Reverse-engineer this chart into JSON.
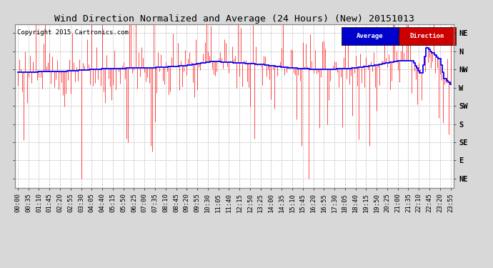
{
  "title": "Wind Direction Normalized and Average (24 Hours) (New) 20151013",
  "copyright": "Copyright 2015 Cartronics.com",
  "legend_average": "Average",
  "legend_direction": "Direction",
  "legend_average_bg": "#0000cc",
  "legend_direction_bg": "#cc0000",
  "ytick_labels": [
    "NE",
    "N",
    "NW",
    "W",
    "SW",
    "S",
    "SE",
    "E",
    "NE"
  ],
  "ytick_values": [
    9,
    8,
    7,
    6,
    5,
    4,
    3,
    2,
    1
  ],
  "xtick_labels": [
    "00:00",
    "00:35",
    "01:10",
    "01:45",
    "02:20",
    "02:55",
    "03:30",
    "04:05",
    "04:40",
    "05:15",
    "05:50",
    "06:25",
    "07:00",
    "07:35",
    "08:10",
    "08:45",
    "09:20",
    "09:55",
    "10:30",
    "11:05",
    "11:40",
    "12:15",
    "12:50",
    "13:25",
    "14:00",
    "14:35",
    "15:10",
    "15:45",
    "16:20",
    "16:55",
    "17:30",
    "18:05",
    "18:40",
    "19:15",
    "19:50",
    "20:25",
    "21:00",
    "21:35",
    "22:10",
    "22:45",
    "23:20",
    "23:55"
  ],
  "ylim": [
    0.5,
    9.5
  ],
  "plot_bg_color": "#ffffff",
  "fig_bg_color": "#d8d8d8",
  "grid_color": "#bbbbbb",
  "direction_color": "#ff0000",
  "average_color": "#0000ff",
  "title_fontsize": 9.5,
  "axis_label_fontsize": 6.5,
  "copyright_fontsize": 6.5,
  "nw_level": 7.0,
  "n_points": 288
}
